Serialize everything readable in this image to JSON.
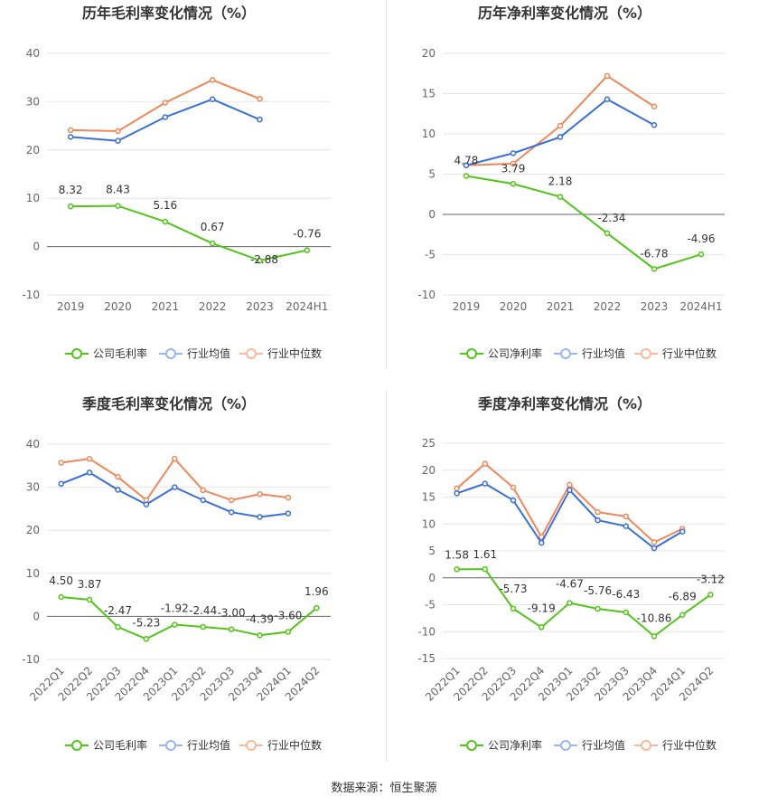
{
  "source_label": "数据来源：恒生聚源",
  "charts": [
    {
      "title": "历年毛利率变化情况（%）",
      "legend": [
        "公司毛利率",
        "行业均值",
        "行业中位数"
      ],
      "colors": [
        "#52c41a",
        "#3a6fd8",
        "#f0875a"
      ],
      "legend_light_colors": [
        "#52c41a",
        "#9bb6ee",
        "#f7b89c"
      ]
    },
    {
      "title": "历年净利率变化情况（%）",
      "legend": [
        "公司净利率",
        "行业均值",
        "行业中位数"
      ],
      "colors": [
        "#52c41a",
        "#3a6fd8",
        "#f0875a"
      ],
      "legend_light_colors": [
        "#52c41a",
        "#9bb6ee",
        "#f7b89c"
      ]
    },
    {
      "title": "季度毛利率变化情况（%）",
      "legend": [
        "公司毛利率",
        "行业均值",
        "行业中位数"
      ],
      "colors": [
        "#52c41a",
        "#3a6fd8",
        "#f0875a"
      ],
      "legend_light_colors": [
        "#52c41a",
        "#9bb6ee",
        "#f7b89c"
      ]
    },
    {
      "title": "季度净利率变化情况（%）",
      "legend": [
        "公司净利率",
        "行业均值",
        "行业中位数"
      ],
      "colors": [
        "#52c41a",
        "#3a6fd8",
        "#f0875a"
      ],
      "legend_light_colors": [
        "#52c41a",
        "#9bb6ee",
        "#f7b89c"
      ]
    }
  ],
  "chart_data": [
    {
      "type": "line",
      "title": "历年毛利率变化情况（%）",
      "categories": [
        "2019",
        "2020",
        "2021",
        "2022",
        "2023",
        "2024H1"
      ],
      "ylim": [
        -10,
        40
      ],
      "yticks": [
        -10,
        0,
        10,
        20,
        30,
        40
      ],
      "grid": true,
      "legend_position": "bottom",
      "series": [
        {
          "name": "公司毛利率",
          "values": [
            8.32,
            8.43,
            5.16,
            0.67,
            -2.88,
            -0.76
          ],
          "labels": [
            "8.32",
            "8.43",
            "5.16",
            "0.67",
            "-2.88",
            "-0.76"
          ]
        },
        {
          "name": "行业均值",
          "values": [
            22.7,
            21.9,
            26.8,
            30.5,
            26.3,
            null
          ]
        },
        {
          "name": "行业中位数",
          "values": [
            24.1,
            23.9,
            29.8,
            34.5,
            30.6,
            null
          ]
        }
      ]
    },
    {
      "type": "line",
      "title": "历年净利率变化情况（%）",
      "categories": [
        "2019",
        "2020",
        "2021",
        "2022",
        "2023",
        "2024H1"
      ],
      "ylim": [
        -10,
        20
      ],
      "yticks": [
        -10,
        -5,
        0,
        5,
        10,
        15,
        20
      ],
      "grid": true,
      "legend_position": "bottom",
      "series": [
        {
          "name": "公司净利率",
          "values": [
            4.78,
            3.79,
            2.18,
            -2.34,
            -6.78,
            -4.96
          ],
          "labels": [
            "4.78",
            "3.79",
            "2.18",
            "-2.34",
            "-6.78",
            "-4.96"
          ]
        },
        {
          "name": "行业均值",
          "values": [
            6.1,
            7.6,
            9.6,
            14.3,
            11.1,
            null
          ]
        },
        {
          "name": "行业中位数",
          "values": [
            6.1,
            6.3,
            11.0,
            17.2,
            13.4,
            null
          ]
        }
      ]
    },
    {
      "type": "line",
      "title": "季度毛利率变化情况（%）",
      "categories": [
        "2022Q1",
        "2022Q2",
        "2022Q3",
        "2022Q4",
        "2023Q1",
        "2023Q2",
        "2023Q3",
        "2023Q4",
        "2024Q1",
        "2024Q2"
      ],
      "ylim": [
        -10,
        40
      ],
      "yticks": [
        -10,
        0,
        10,
        20,
        30,
        40
      ],
      "grid": true,
      "legend_position": "bottom",
      "series": [
        {
          "name": "公司毛利率",
          "values": [
            4.5,
            3.87,
            -2.47,
            -5.23,
            -1.92,
            -2.44,
            -3.0,
            -4.39,
            -3.6,
            1.96
          ],
          "labels": [
            "4.50",
            "3.87",
            "-2.47",
            "-5.23",
            "-1.92",
            "-2.44",
            "-3.00",
            "-4.39",
            "-3.60",
            "1.96"
          ]
        },
        {
          "name": "行业均值",
          "values": [
            30.8,
            33.4,
            29.4,
            26.0,
            30.0,
            27.0,
            24.2,
            23.1,
            23.9,
            null
          ]
        },
        {
          "name": "行业中位数",
          "values": [
            35.7,
            36.6,
            32.4,
            27.0,
            36.6,
            29.3,
            27.0,
            28.4,
            27.6,
            null
          ]
        }
      ]
    },
    {
      "type": "line",
      "title": "季度净利率变化情况（%）",
      "categories": [
        "2022Q1",
        "2022Q2",
        "2022Q3",
        "2022Q4",
        "2023Q1",
        "2023Q2",
        "2023Q3",
        "2023Q4",
        "2024Q1",
        "2024Q2"
      ],
      "ylim": [
        -15,
        25
      ],
      "yticks": [
        -15,
        -10,
        -5,
        0,
        5,
        10,
        15,
        20,
        25
      ],
      "grid": true,
      "legend_position": "bottom",
      "series": [
        {
          "name": "公司净利率",
          "values": [
            1.58,
            1.61,
            -5.73,
            -9.19,
            -4.67,
            -5.76,
            -6.43,
            -10.86,
            -6.89,
            -3.12
          ],
          "labels": [
            "1.58",
            "1.61",
            "-5.73",
            "-9.19",
            "-4.67",
            "-5.76",
            "-6.43",
            "-10.86",
            "-6.89",
            "-3.12"
          ]
        },
        {
          "name": "行业均值",
          "values": [
            15.7,
            17.5,
            14.4,
            6.5,
            16.3,
            10.7,
            9.6,
            5.5,
            8.6,
            null
          ]
        },
        {
          "name": "行业中位数",
          "values": [
            16.6,
            21.2,
            16.8,
            7.6,
            17.3,
            12.2,
            11.4,
            6.6,
            9.1,
            null
          ]
        }
      ]
    }
  ]
}
